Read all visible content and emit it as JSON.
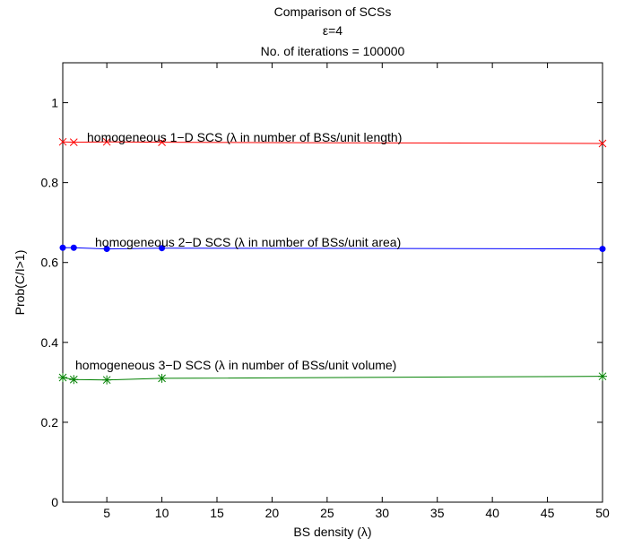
{
  "chart_data": {
    "type": "line",
    "title_lines": [
      "Comparison of SCSs",
      "ε=4",
      "No. of iterations = 100000"
    ],
    "xlabel": "BS density (λ)",
    "ylabel": "Prob(C/I>1)",
    "xlim": [
      1,
      50
    ],
    "ylim": [
      0,
      1.1
    ],
    "xticks": [
      5,
      10,
      15,
      20,
      25,
      30,
      35,
      40,
      45,
      50
    ],
    "yticks": [
      0,
      0.2,
      0.4,
      0.6,
      0.8,
      1
    ],
    "ytick_labels": [
      "0",
      "0.2",
      "0.4",
      "0.6",
      "0.8",
      "1"
    ],
    "grid": false,
    "series": [
      {
        "label": "homogeneous 1−D SCS (λ in number of BSs/unit length)",
        "color": "#ff0000",
        "marker": "x",
        "x": [
          1,
          2,
          5,
          10,
          50
        ],
        "y": [
          0.902,
          0.901,
          0.902,
          0.901,
          0.898
        ]
      },
      {
        "label": "homogeneous 2−D SCS (λ in number of BSs/unit area)",
        "color": "#0000ff",
        "marker": "dot",
        "x": [
          1,
          2,
          5,
          10,
          50
        ],
        "y": [
          0.637,
          0.637,
          0.634,
          0.636,
          0.634
        ]
      },
      {
        "label": "homogeneous 3−D SCS (λ in number of BSs/unit volume)",
        "color": "#008000",
        "marker": "star",
        "x": [
          1,
          2,
          5,
          10,
          50
        ],
        "y": [
          0.312,
          0.307,
          0.306,
          0.31,
          0.315
        ]
      }
    ]
  }
}
